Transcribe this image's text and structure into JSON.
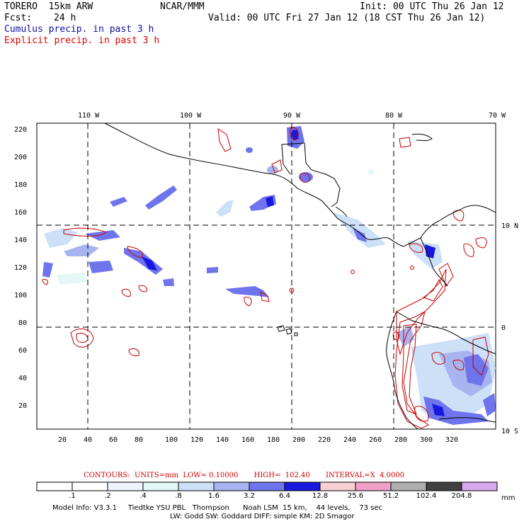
{
  "header": {
    "model": "TORERO  15km ARW",
    "center": "NCAR/MMM",
    "init": "Init: 00 UTC Thu 26 Jan 12",
    "fcst_label": "Fcst:",
    "fcst_value": "24 h",
    "valid": "Valid: 00 UTC Fri 27 Jan 12 (18 CST Thu 26 Jan 12)",
    "field1": "Cumulus precip. in past 3 h",
    "field2": "Explicit precip. in past 3 h",
    "field1_color": "#1010a0",
    "field2_color": "#e00000"
  },
  "map": {
    "lon_labels": [
      "110 W",
      "100 W",
      "90 W",
      "80 W",
      "70 W"
    ],
    "lat_labels_right": [
      "10 N",
      "0",
      "10 S"
    ],
    "y_ticks": [
      "20",
      "40",
      "60",
      "80",
      "100",
      "120",
      "140",
      "160",
      "180",
      "200",
      "220"
    ],
    "x_ticks": [
      "20",
      "40",
      "60",
      "80",
      "100",
      "120",
      "140",
      "160",
      "180",
      "200",
      "220",
      "240",
      "260",
      "280",
      "300",
      "320"
    ]
  },
  "contours": {
    "caption": "CONTOURS:  UNITS=mm  LOW= 0.10000       HIGH=  102.40       INTERVAL=X  4.0000",
    "color": "#cc0000"
  },
  "colorbar": {
    "labels": [
      ".1",
      ".2",
      ".4",
      ".8",
      "1.6",
      "3.2",
      "6.4",
      "12.8",
      "25.6",
      "51.2",
      "102.4",
      "204.8"
    ],
    "unit": "mm",
    "colors": [
      "#ffffff",
      "#ffffff",
      "#eef4ff",
      "#e4f8f8",
      "#cce0f8",
      "#a8b4f0",
      "#6e74ec",
      "#1818e0",
      "#f8d0d0",
      "#f0a0c4",
      "#b0b0b0",
      "#404040",
      "#d8a8f0"
    ]
  },
  "footer": {
    "line1": "Model Info: V3.3.1     Tiedtke YSU PBL   Thompson      Noah LSM  15 km,    44 levels,    73 sec",
    "line2": "LW: Godd SW: Goddard DIFF: simple KM: 2D Smagor"
  }
}
